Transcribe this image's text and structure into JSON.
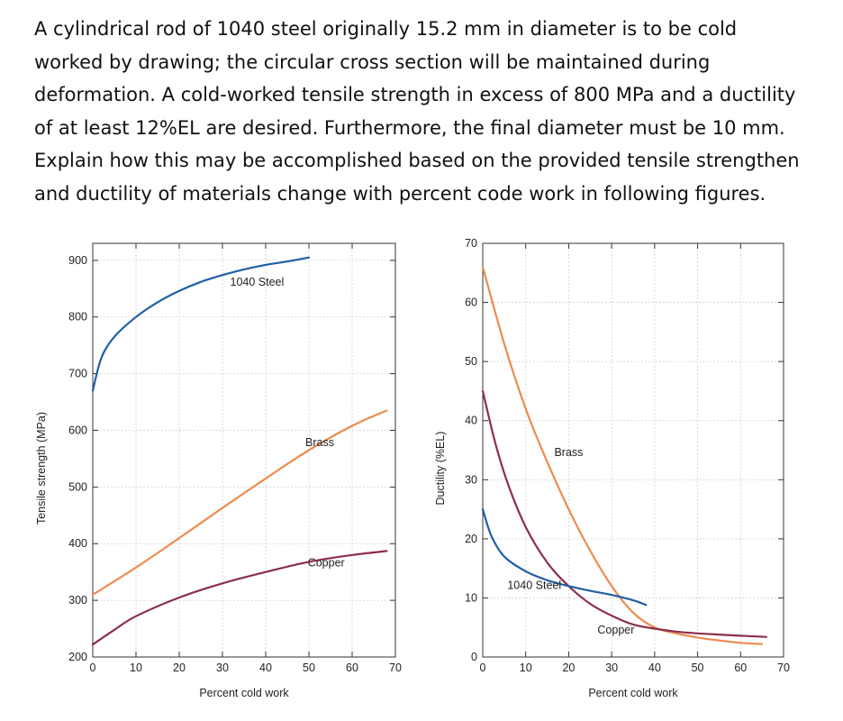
{
  "question": {
    "lines": [
      "A cylindrical rod of 1040 steel originally 15.2 mm in diameter is to be cold",
      "worked by drawing; the circular cross section will be maintained during",
      "deformation. A cold-worked tensile strength in excess of 800 MPa and a ductility",
      "of at least 12%EL are desired. Furthermore, the final diameter must be 10 mm.",
      "Explain how this may be accomplished based on the provided tensile strengthen",
      "and ductility of materials change with percent code work in following figures."
    ]
  },
  "chart_data": [
    {
      "type": "line",
      "title": "",
      "xlabel": "Percent cold work",
      "ylabel": "Tensile strength (MPa)",
      "xlim": [
        0,
        70
      ],
      "ylim": [
        200,
        930
      ],
      "xticks": [
        0,
        10,
        20,
        30,
        40,
        50,
        60,
        70
      ],
      "yticks": [
        200,
        300,
        400,
        500,
        600,
        700,
        800,
        900
      ],
      "grid": true,
      "series": [
        {
          "name": "1040 Steel",
          "color": "#1f5fa8",
          "x": [
            0,
            2,
            5,
            10,
            15,
            20,
            25,
            30,
            35,
            40,
            45,
            50
          ],
          "y": [
            670,
            728,
            765,
            800,
            826,
            846,
            862,
            874,
            884,
            892,
            898,
            905
          ]
        },
        {
          "name": "Brass",
          "color": "#ee8b4f",
          "x": [
            0,
            10,
            20,
            30,
            40,
            50,
            60,
            68
          ],
          "y": [
            310,
            358,
            410,
            463,
            515,
            565,
            608,
            635
          ]
        },
        {
          "name": "Copper",
          "color": "#8c2f4a",
          "x": [
            0,
            5,
            10,
            20,
            30,
            40,
            50,
            60,
            68
          ],
          "y": [
            222,
            248,
            272,
            305,
            330,
            350,
            368,
            380,
            387
          ]
        }
      ],
      "labels": [
        {
          "text": "1040 Steel",
          "x": 38,
          "y": 855
        },
        {
          "text": "Brass",
          "x": 52.5,
          "y": 572
        },
        {
          "text": "Copper",
          "x": 54,
          "y": 360
        }
      ]
    },
    {
      "type": "line",
      "title": "",
      "xlabel": "Percent cold work",
      "ylabel": "Ductility (%EL)",
      "xlim": [
        0,
        70
      ],
      "ylim": [
        0,
        70
      ],
      "xticks": [
        0,
        10,
        20,
        30,
        40,
        50,
        60,
        70
      ],
      "yticks": [
        0,
        10,
        20,
        30,
        40,
        50,
        60,
        70
      ],
      "grid": true,
      "series": [
        {
          "name": "Brass",
          "color": "#ee8b4f",
          "x": [
            0,
            5,
            10,
            15,
            20,
            25,
            30,
            35,
            40,
            45,
            50,
            55,
            60,
            65
          ],
          "y": [
            66,
            53,
            42,
            33,
            25,
            18,
            12,
            7.5,
            5,
            4,
            3.3,
            2.8,
            2.4,
            2.2
          ]
        },
        {
          "name": "Copper",
          "color": "#8c2f4a",
          "x": [
            0,
            3,
            6,
            10,
            15,
            20,
            25,
            30,
            35,
            40,
            45,
            50,
            55,
            60,
            66
          ],
          "y": [
            45,
            36,
            29,
            22,
            16,
            12,
            9,
            7,
            5.5,
            4.8,
            4.3,
            4.0,
            3.8,
            3.6,
            3.4
          ]
        },
        {
          "name": "1040 Steel",
          "color": "#1f5fa8",
          "x": [
            0,
            2,
            5,
            10,
            15,
            20,
            25,
            30,
            35,
            38
          ],
          "y": [
            25,
            20.5,
            17,
            14.5,
            13,
            12,
            11.2,
            10.5,
            9.6,
            8.8
          ]
        }
      ],
      "labels": [
        {
          "text": "Brass",
          "x": 20,
          "y": 34
        },
        {
          "text": "1040 Steel",
          "x": 12,
          "y": 11.5
        },
        {
          "text": "Copper",
          "x": 31,
          "y": 4
        }
      ]
    }
  ]
}
